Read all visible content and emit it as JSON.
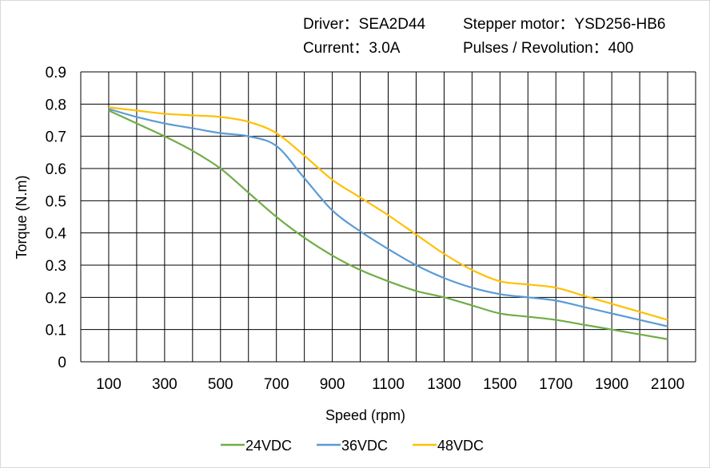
{
  "header": {
    "driver": "Driver：SEA2D44",
    "motor": "Stepper motor：YSD256-HB6",
    "current": "Current：3.0A",
    "pulses": "Pulses / Revolution：400"
  },
  "chart_data": {
    "type": "line",
    "title": "",
    "xlabel": "Speed  (rpm)",
    "ylabel": "Torque (N.m)",
    "xlim": [
      0,
      2200
    ],
    "ylim": [
      0,
      0.9
    ],
    "grid": true,
    "legend_position": "bottom",
    "x_ticks": [
      100,
      300,
      500,
      700,
      900,
      1100,
      1300,
      1500,
      1700,
      1900,
      2100
    ],
    "y_ticks": [
      0,
      0.1,
      0.2,
      0.3,
      0.4,
      0.5,
      0.6,
      0.7,
      0.8,
      0.9
    ],
    "x": [
      100,
      200,
      300,
      400,
      500,
      600,
      700,
      800,
      900,
      1000,
      1100,
      1200,
      1300,
      1400,
      1500,
      1600,
      1700,
      1800,
      1900,
      2000,
      2100
    ],
    "series": [
      {
        "name": "24VDC",
        "color": "#70ad47",
        "values": [
          0.78,
          0.74,
          0.7,
          0.655,
          0.6,
          0.525,
          0.45,
          0.385,
          0.33,
          0.285,
          0.25,
          0.22,
          0.2,
          0.175,
          0.15,
          0.14,
          0.13,
          0.115,
          0.1,
          0.085,
          0.07
        ]
      },
      {
        "name": "36VDC",
        "color": "#5b9bd5",
        "values": [
          0.785,
          0.76,
          0.74,
          0.725,
          0.71,
          0.7,
          0.67,
          0.57,
          0.47,
          0.405,
          0.35,
          0.3,
          0.26,
          0.23,
          0.21,
          0.2,
          0.19,
          0.17,
          0.15,
          0.13,
          0.11
        ]
      },
      {
        "name": "48VDC",
        "color": "#ffc000",
        "values": [
          0.79,
          0.78,
          0.77,
          0.765,
          0.76,
          0.745,
          0.71,
          0.64,
          0.565,
          0.51,
          0.455,
          0.395,
          0.335,
          0.285,
          0.25,
          0.24,
          0.23,
          0.205,
          0.18,
          0.155,
          0.13
        ]
      }
    ]
  }
}
